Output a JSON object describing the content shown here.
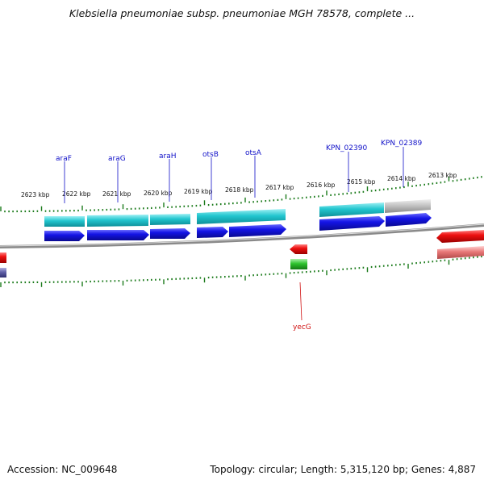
{
  "title": "Klebsiella pneumoniae subsp. pneumoniae MGH 78578, complete ...",
  "footer": {
    "accession": "Accession: NC_009648",
    "summary": "Topology: circular; Length: 5,315,120 bp; Genes: 4,887"
  },
  "map": {
    "kbp_labels": [
      "2623 kbp",
      "2622 kbp",
      "2621 kbp",
      "2620 kbp",
      "2619 kbp",
      "2618 kbp",
      "2617 kbp",
      "2616 kbp",
      "2615 kbp",
      "2614 kbp",
      "2613 kbp"
    ],
    "upper_gene_labels": [
      "araF",
      "araG",
      "araH",
      "otsB",
      "otsA",
      "KPN_02390",
      "KPN_02389"
    ],
    "lower_gene_labels": [
      "yecG"
    ],
    "colors": {
      "forward_cds": "#1010e0",
      "forward_gene": "#20c0c8",
      "pseudo_gene": "#c0c0c0",
      "reverse_cds": "#e01010",
      "reverse_gene": "#e07878",
      "small_gene": "#20b020",
      "upper_label": "#1010c8",
      "lower_label": "#d01010",
      "tick": "#1a7a1a",
      "backbone": "#8a8a8a"
    }
  }
}
